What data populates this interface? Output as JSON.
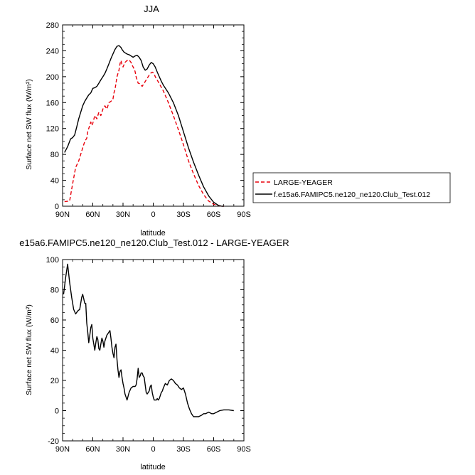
{
  "chart_data": [
    {
      "type": "line",
      "title": "JJA",
      "xlabel": "latitude",
      "ylabel": "Surface net SW flux (W/m²)",
      "xlim": [
        90,
        -90
      ],
      "ylim": [
        0,
        280
      ],
      "xticks": [
        90,
        60,
        30,
        0,
        -30,
        -60,
        -90
      ],
      "xtick_labels": [
        "90N",
        "60N",
        "30N",
        "0",
        "30S",
        "60S",
        "90S"
      ],
      "yticks": [
        0,
        40,
        80,
        120,
        160,
        200,
        240,
        280
      ],
      "ytick_labels": [
        "0",
        "40",
        "80",
        "120",
        "160",
        "200",
        "240",
        "280"
      ],
      "legend_placement": "right",
      "series": [
        {
          "name": "LARGE-YEAGER",
          "color": "#e8000b",
          "dash": true,
          "x": [
            88,
            83,
            80,
            77,
            74,
            72,
            70,
            68,
            66,
            65,
            64,
            62,
            61,
            60,
            58,
            56,
            54,
            52,
            50,
            48,
            46,
            44,
            42,
            40,
            39,
            38,
            37,
            36,
            35,
            34,
            33,
            32,
            31,
            30,
            28,
            26,
            24,
            22,
            21,
            20,
            19,
            18,
            17,
            15,
            13,
            11,
            9,
            7,
            5,
            3,
            1,
            0,
            -1,
            -2,
            -5,
            -10,
            -15,
            -20,
            -25,
            -30,
            -35,
            -40,
            -45,
            -50,
            -55,
            -60,
            -65,
            -68,
            -70
          ],
          "y": [
            7,
            8,
            35,
            60,
            70,
            80,
            90,
            100,
            105,
            115,
            120,
            130,
            125,
            128,
            140,
            135,
            145,
            140,
            150,
            155,
            150,
            160,
            162,
            165,
            175,
            180,
            190,
            200,
            205,
            210,
            220,
            225,
            218,
            215,
            222,
            225,
            226,
            222,
            218,
            215,
            212,
            208,
            200,
            190,
            189,
            185,
            190,
            195,
            200,
            205,
            207,
            206,
            204,
            200,
            192,
            178,
            160,
            140,
            118,
            95,
            70,
            50,
            32,
            18,
            8,
            3,
            1,
            0,
            0
          ]
        },
        {
          "name": "f.e15a6.FAMIPC5.ne120_ne120.Club_Test.012",
          "color": "#000000",
          "dash": false,
          "x": [
            88,
            85,
            82,
            80,
            78,
            76,
            74,
            72,
            70,
            68,
            66,
            64,
            62,
            60,
            58,
            56,
            54,
            52,
            50,
            48,
            46,
            44,
            42,
            40,
            38,
            36,
            34,
            32,
            31,
            30,
            29,
            28,
            26,
            24,
            22,
            20,
            18,
            16,
            14,
            12,
            10,
            8,
            6,
            4,
            2,
            0,
            -2,
            -4,
            -6,
            -8,
            -10,
            -15,
            -20,
            -25,
            -30,
            -35,
            -40,
            -45,
            -50,
            -55,
            -60,
            -65,
            -68,
            -70
          ],
          "y": [
            83,
            92,
            104,
            106,
            110,
            122,
            135,
            145,
            155,
            162,
            167,
            172,
            175,
            182,
            183,
            185,
            190,
            195,
            200,
            205,
            212,
            220,
            228,
            235,
            242,
            247,
            248,
            245,
            242,
            240,
            238,
            237,
            235,
            234,
            232,
            230,
            232,
            233,
            230,
            225,
            215,
            210,
            212,
            218,
            222,
            220,
            215,
            207,
            200,
            193,
            187,
            175,
            160,
            140,
            115,
            90,
            68,
            48,
            30,
            16,
            6,
            1,
            0,
            0
          ]
        }
      ]
    },
    {
      "type": "line",
      "title": "e15a6.FAMIPC5.ne120_ne120.Club_Test.012 - LARGE-YEAGER",
      "xlabel": "latitude",
      "ylabel": "Surface net SW flux (W/m²)",
      "xlim": [
        90,
        -90
      ],
      "ylim": [
        -20,
        100
      ],
      "xticks": [
        90,
        60,
        30,
        0,
        -30,
        -60,
        -90
      ],
      "xtick_labels": [
        "90N",
        "60N",
        "30N",
        "0",
        "30S",
        "60S",
        "90S"
      ],
      "yticks": [
        -20,
        0,
        20,
        40,
        60,
        80,
        100
      ],
      "ytick_labels": [
        "-20",
        "0",
        "20",
        "40",
        "60",
        "80",
        "100"
      ],
      "series": [
        {
          "color": "#000000",
          "dash": false,
          "x": [
            89,
            87,
            85,
            83,
            81,
            79,
            77,
            75,
            73,
            71,
            70,
            69,
            68,
            67,
            66,
            65,
            64,
            63,
            62,
            61,
            60,
            59,
            58,
            57,
            56,
            55,
            54,
            53,
            52,
            51,
            50,
            49,
            48,
            47,
            46,
            45,
            44,
            43,
            42,
            41,
            40,
            39,
            38,
            37,
            36,
            35,
            34,
            33,
            32,
            31,
            30,
            29,
            28,
            26,
            24,
            22,
            20,
            19,
            18,
            17,
            16,
            15,
            14,
            13,
            12,
            11,
            10,
            9,
            8,
            7,
            6,
            5,
            4,
            3,
            2,
            1,
            0,
            -1,
            -2,
            -3,
            -4,
            -5,
            -6,
            -7,
            -8,
            -9,
            -10,
            -12,
            -14,
            -16,
            -18,
            -20,
            -22,
            -24,
            -26,
            -28,
            -30,
            -32,
            -34,
            -36,
            -38,
            -40,
            -42,
            -45,
            -48,
            -50,
            -52,
            -55,
            -58,
            -60,
            -63,
            -66,
            -70,
            -75,
            -80
          ],
          "y": [
            77,
            88,
            97,
            85,
            75,
            67,
            64,
            66,
            67,
            75,
            77,
            74,
            71,
            71,
            58,
            52,
            45,
            50,
            55,
            57,
            48,
            44,
            40,
            45,
            49,
            47,
            41,
            40,
            44,
            48,
            46,
            42,
            46,
            48,
            50,
            51,
            52,
            53,
            48,
            42,
            38,
            35,
            42,
            44,
            34,
            27,
            22,
            26,
            27,
            22,
            18,
            15,
            11,
            7,
            12,
            15,
            16,
            16,
            16,
            17,
            21,
            28,
            22,
            23,
            25,
            25,
            23,
            22,
            17,
            12,
            11,
            12,
            13,
            16,
            17,
            12,
            9,
            7,
            7,
            7,
            8,
            7,
            8,
            10,
            12,
            13,
            15,
            18,
            17,
            20,
            21,
            20,
            18,
            17,
            15,
            14,
            15,
            11,
            5,
            1,
            -2,
            -4,
            -4,
            -4,
            -3,
            -2,
            -2,
            -1,
            -2,
            -2,
            -1,
            0,
            0.5,
            0.5,
            0
          ]
        }
      ]
    }
  ]
}
